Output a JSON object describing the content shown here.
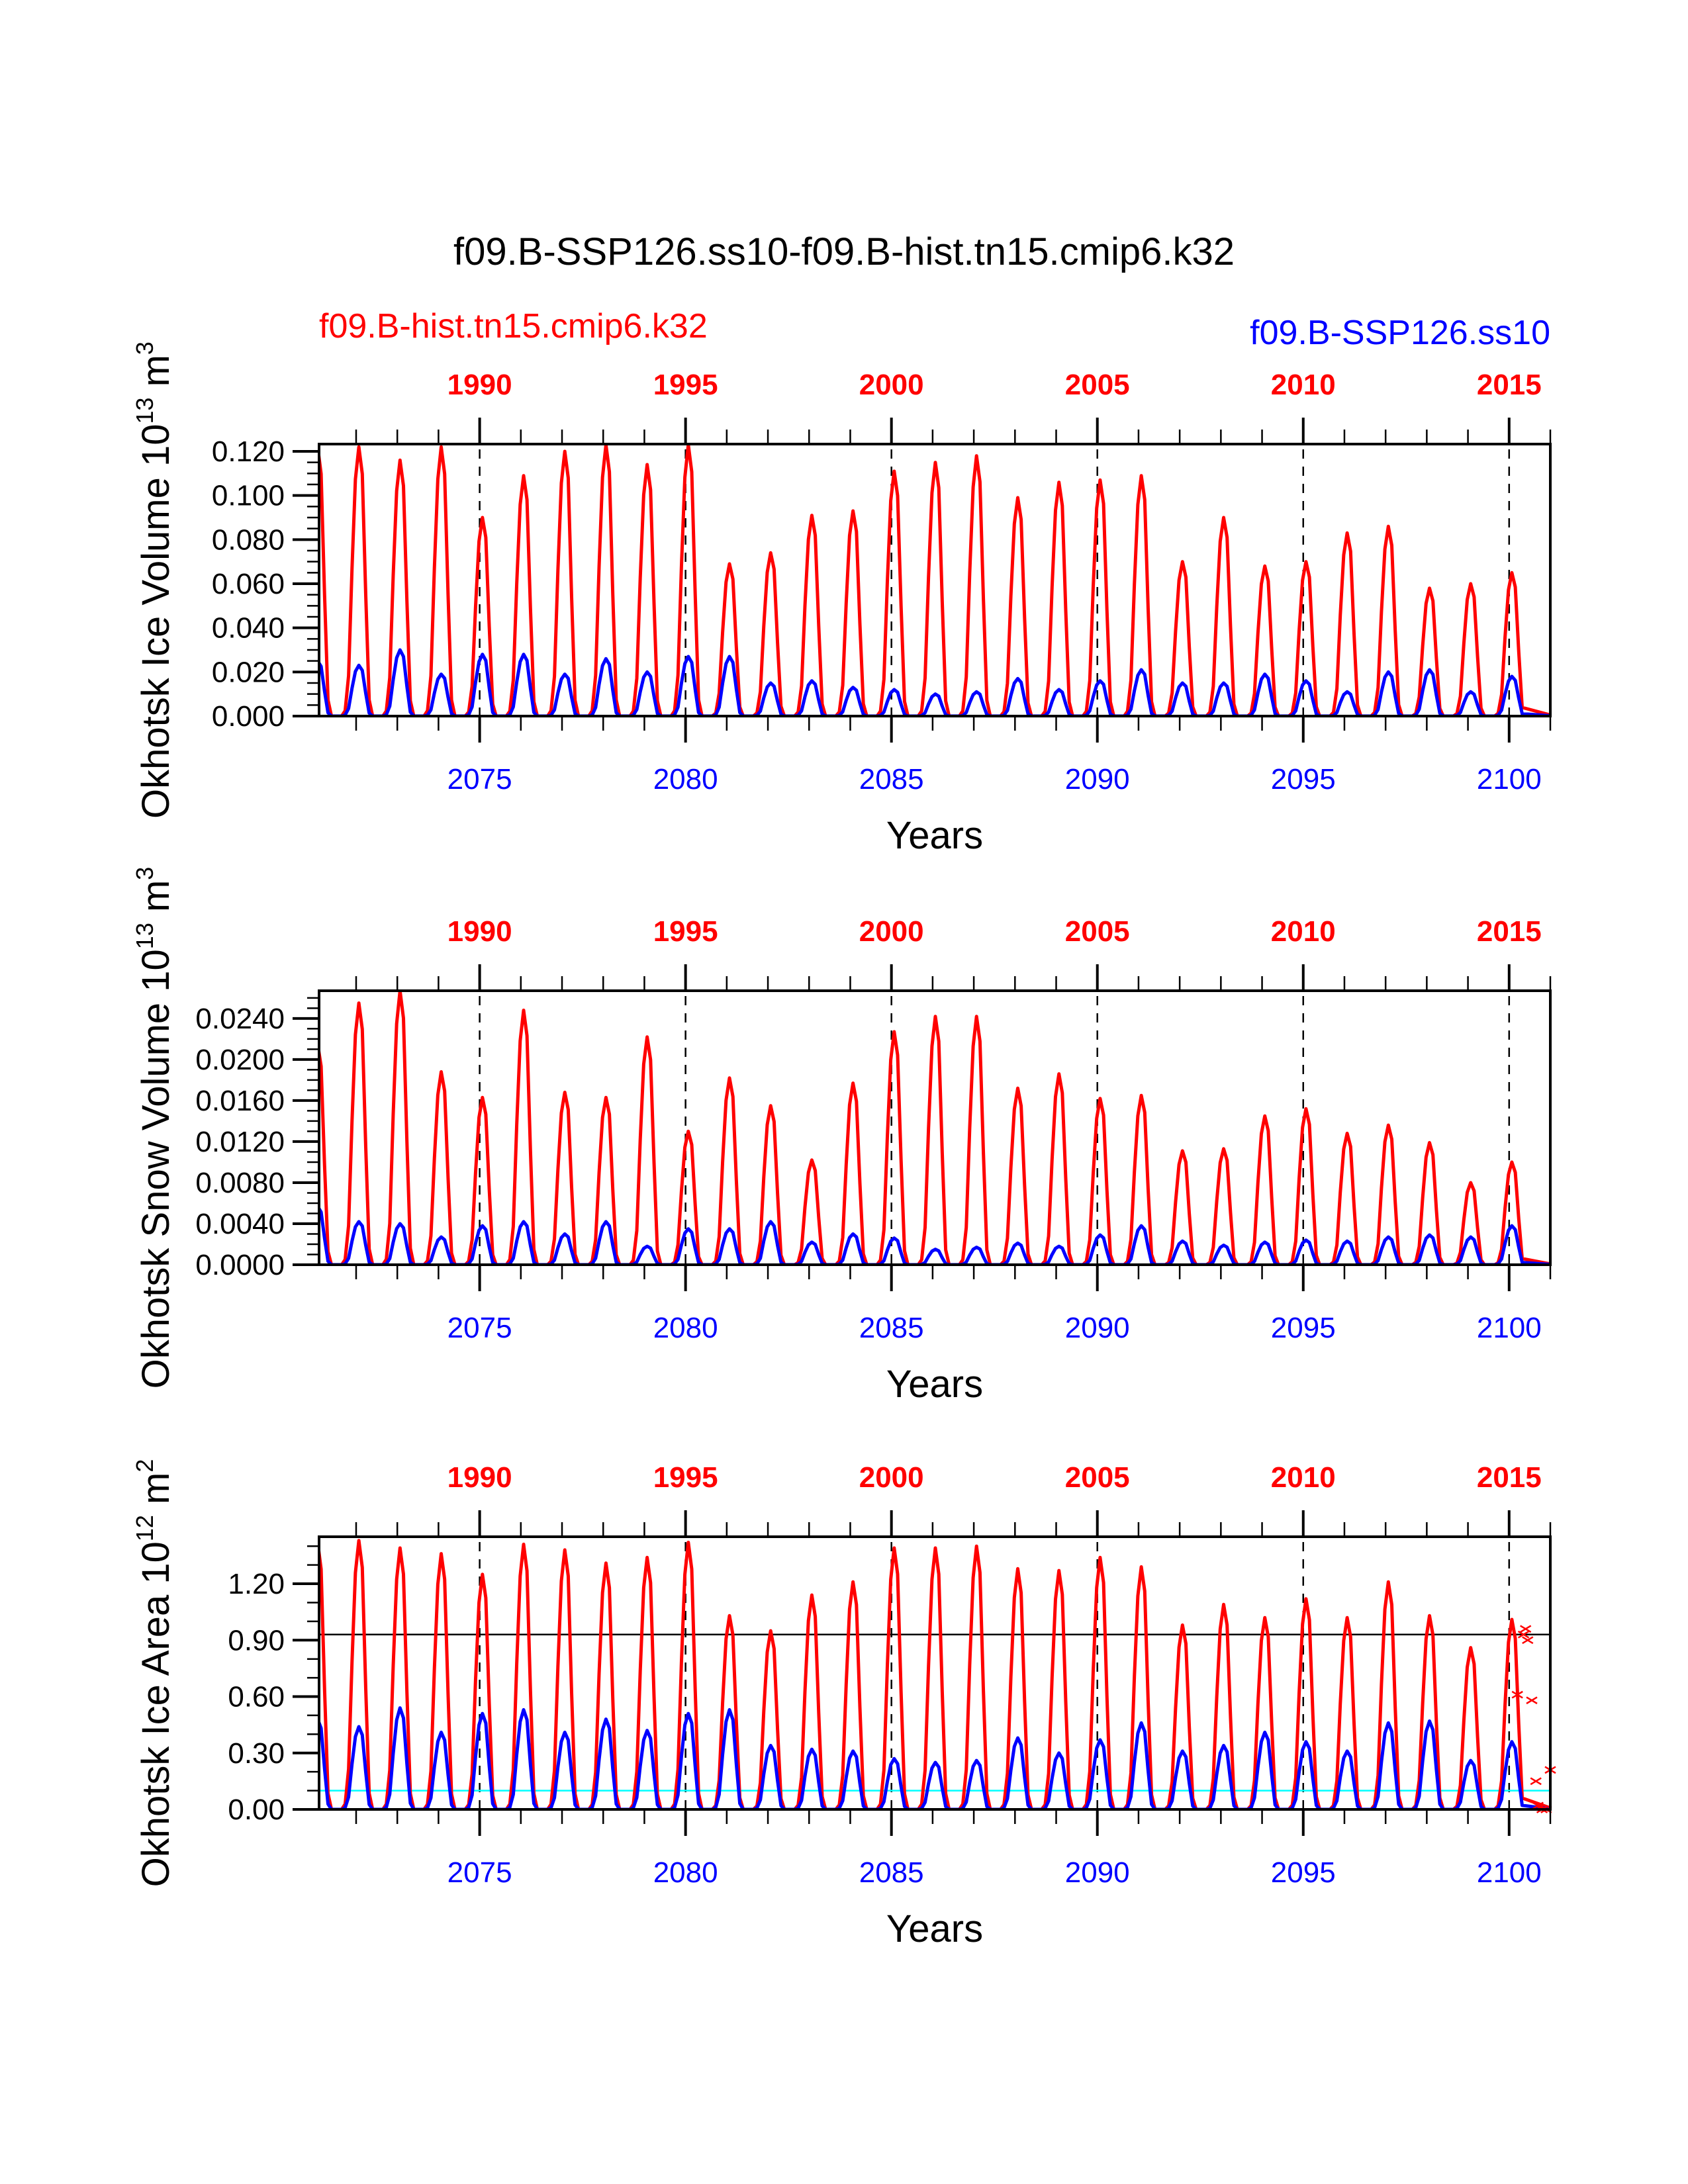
{
  "chart_data": {
    "type": "line",
    "title": "f09.B-SSP126.ss10-f09.B-hist.tn15.cmip6.k32",
    "legend": [
      {
        "name": "f09.B-hist.tn15.cmip6.k32",
        "color": "#ff0000",
        "position": "top-left"
      },
      {
        "name": "f09.B-SSP126.ss10",
        "color": "#0000ff",
        "position": "top-right"
      }
    ],
    "x_bottom": {
      "label": "Years",
      "ticks": [
        "2075",
        "2080",
        "2085",
        "2090",
        "2095",
        "2100"
      ],
      "range": [
        2071.1,
        2101.0
      ],
      "color": "#0000ff"
    },
    "x_top": {
      "ticks": [
        "1990",
        "1995",
        "2000",
        "2005",
        "2010",
        "2015"
      ],
      "color": "#ff0000"
    },
    "panels": [
      {
        "ylabel": "Okhotsk Ice Volume 10",
        "ylabel_exp": "13",
        "ylabel_unit": " m",
        "ylabel_unit_exp": "3",
        "yticks": [
          "0.000",
          "0.020",
          "0.040",
          "0.060",
          "0.080",
          "0.100",
          "0.120"
        ],
        "ytick_values": [
          0,
          0.02,
          0.04,
          0.06,
          0.08,
          0.1,
          0.12
        ],
        "ylim": [
          0,
          0.1233
        ],
        "minor_step": 0.005,
        "series": [
          {
            "name": "f09.B-hist.tn15.cmip6.k32",
            "color": "#ff0000",
            "annual_peaks": [
              0.122,
              0.122,
              0.116,
              0.122,
              0.09,
              0.109,
              0.12,
              0.123,
              0.114,
              0.123,
              0.069,
              0.074,
              0.091,
              0.093,
              0.111,
              0.115,
              0.118,
              0.099,
              0.106,
              0.107,
              0.109,
              0.07,
              0.09,
              0.068,
              0.07,
              0.083,
              0.086,
              0.058,
              0.06,
              0.065
            ]
          },
          {
            "name": "f09.B-SSP126.ss10",
            "color": "#0000ff",
            "annual_peaks": [
              0.025,
              0.023,
              0.03,
              0.019,
              0.028,
              0.028,
              0.019,
              0.026,
              0.02,
              0.027,
              0.027,
              0.015,
              0.016,
              0.013,
              0.012,
              0.01,
              0.011,
              0.017,
              0.012,
              0.016,
              0.021,
              0.015,
              0.015,
              0.019,
              0.016,
              0.011,
              0.02,
              0.021,
              0.011,
              0.018
            ]
          }
        ]
      },
      {
        "ylabel": "Okhotsk Snow Volume 10",
        "ylabel_exp": "13",
        "ylabel_unit": " m",
        "ylabel_unit_exp": "3",
        "yticks": [
          "0.0000",
          "0.0040",
          "0.0080",
          "0.0120",
          "0.0160",
          "0.0200",
          "0.0240"
        ],
        "ytick_values": [
          0,
          0.004,
          0.008,
          0.012,
          0.016,
          0.02,
          0.024
        ],
        "ylim": [
          0,
          0.0267
        ],
        "minor_step": 0.001,
        "series": [
          {
            "name": "f09.B-hist.tn15.cmip6.k32",
            "color": "#ff0000",
            "annual_peaks": [
              0.0215,
              0.0255,
              0.0267,
              0.0188,
              0.0163,
              0.0248,
              0.0168,
              0.0163,
              0.0222,
              0.013,
              0.0182,
              0.0155,
              0.0102,
              0.0177,
              0.0227,
              0.0242,
              0.0242,
              0.0172,
              0.0186,
              0.0162,
              0.0165,
              0.0111,
              0.0113,
              0.0145,
              0.0152,
              0.0128,
              0.0136,
              0.0119,
              0.008,
              0.01
            ]
          },
          {
            "name": "f09.B-SSP126.ss10",
            "color": "#0000ff",
            "annual_peaks": [
              0.0057,
              0.0042,
              0.004,
              0.0027,
              0.0038,
              0.0042,
              0.003,
              0.0042,
              0.0018,
              0.0035,
              0.0035,
              0.0042,
              0.0022,
              0.003,
              0.0026,
              0.0015,
              0.0017,
              0.0021,
              0.0018,
              0.0029,
              0.0038,
              0.0023,
              0.0019,
              0.0022,
              0.0024,
              0.0023,
              0.0027,
              0.0029,
              0.0027,
              0.0038
            ]
          }
        ]
      },
      {
        "ylabel": "Okhotsk Ice Area 10",
        "ylabel_exp": "12",
        "ylabel_unit": " m",
        "ylabel_unit_exp": "2",
        "yticks": [
          "0.00",
          "0.30",
          "0.60",
          "0.90",
          "1.20"
        ],
        "ytick_values": [
          0,
          0.3,
          0.6,
          0.9,
          1.2
        ],
        "ylim": [
          0,
          1.45
        ],
        "minor_step": 0.1,
        "reference_lines": [
          {
            "value": 0.93,
            "color": "#000000"
          },
          {
            "value": 0.1,
            "color": "#00ffff"
          }
        ],
        "markers": {
          "symbol": "x",
          "color": "#ff0000",
          "points": [
            [
              2100.2,
              0.61
            ],
            [
              2100.35,
              0.93
            ],
            [
              2100.4,
              0.96
            ],
            [
              2100.45,
              0.9
            ],
            [
              2100.55,
              0.58
            ],
            [
              2100.65,
              0.15
            ],
            [
              2100.7,
              0.02
            ],
            [
              2100.8,
              0.0
            ],
            [
              2100.9,
              0.0
            ],
            [
              2101.0,
              0.21
            ]
          ]
        },
        "series": [
          {
            "name": "f09.B-hist.tn15.cmip6.k32",
            "color": "#ff0000",
            "annual_peaks": [
              1.42,
              1.43,
              1.39,
              1.36,
              1.25,
              1.41,
              1.38,
              1.31,
              1.34,
              1.42,
              1.03,
              0.95,
              1.14,
              1.21,
              1.39,
              1.39,
              1.4,
              1.28,
              1.27,
              1.34,
              1.29,
              0.98,
              1.09,
              1.02,
              1.12,
              1.02,
              1.21,
              1.03,
              0.86,
              1.01
            ]
          },
          {
            "name": "f09.B-SSP126.ss10",
            "color": "#0000ff",
            "annual_peaks": [
              0.48,
              0.44,
              0.54,
              0.41,
              0.51,
              0.53,
              0.41,
              0.48,
              0.42,
              0.51,
              0.53,
              0.34,
              0.32,
              0.31,
              0.27,
              0.25,
              0.26,
              0.38,
              0.3,
              0.37,
              0.46,
              0.31,
              0.34,
              0.41,
              0.36,
              0.31,
              0.46,
              0.47,
              0.26,
              0.36
            ]
          }
        ]
      }
    ]
  }
}
